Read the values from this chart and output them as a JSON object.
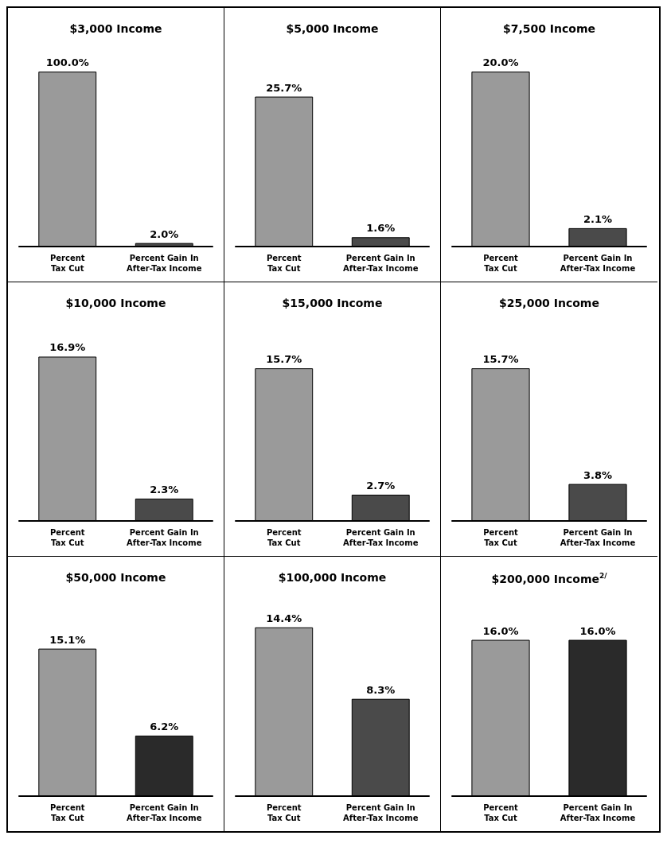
{
  "chart_data": [
    {
      "type": "bar",
      "title": "$3,000 Income",
      "categories": [
        "Percent\nTax Cut",
        "Percent Gain In\nAfter-Tax Income"
      ],
      "values": [
        100.0,
        2.0
      ],
      "value_labels": [
        "100.0%",
        "2.0%"
      ],
      "colors": [
        "#9a9a9a",
        "#4a4a4a"
      ]
    },
    {
      "type": "bar",
      "title": "$5,000 Income",
      "categories": [
        "Percent\nTax Cut",
        "Percent Gain In\nAfter-Tax Income"
      ],
      "values": [
        25.7,
        1.6
      ],
      "value_labels": [
        "25.7%",
        "1.6%"
      ],
      "colors": [
        "#9a9a9a",
        "#4a4a4a"
      ]
    },
    {
      "type": "bar",
      "title": "$7,500 Income",
      "categories": [
        "Percent\nTax Cut",
        "Percent Gain In\nAfter-Tax Income"
      ],
      "values": [
        20.0,
        2.1
      ],
      "value_labels": [
        "20.0%",
        "2.1%"
      ],
      "colors": [
        "#9a9a9a",
        "#4a4a4a"
      ]
    },
    {
      "type": "bar",
      "title": "$10,000 Income",
      "categories": [
        "Percent\nTax Cut",
        "Percent Gain In\nAfter-Tax Income"
      ],
      "values": [
        16.9,
        2.3
      ],
      "value_labels": [
        "16.9%",
        "2.3%"
      ],
      "colors": [
        "#9a9a9a",
        "#4a4a4a"
      ]
    },
    {
      "type": "bar",
      "title": "$15,000 Income",
      "categories": [
        "Percent\nTax Cut",
        "Percent Gain In\nAfter-Tax Income"
      ],
      "values": [
        15.7,
        2.7
      ],
      "value_labels": [
        "15.7%",
        "2.7%"
      ],
      "colors": [
        "#9a9a9a",
        "#4a4a4a"
      ]
    },
    {
      "type": "bar",
      "title": "$25,000 Income",
      "categories": [
        "Percent\nTax Cut",
        "Percent Gain In\nAfter-Tax Income"
      ],
      "values": [
        15.7,
        3.8
      ],
      "value_labels": [
        "15.7%",
        "3.8%"
      ],
      "colors": [
        "#9a9a9a",
        "#4a4a4a"
      ]
    },
    {
      "type": "bar",
      "title": "$50,000 Income",
      "categories": [
        "Percent\nTax Cut",
        "Percent Gain In\nAfter-Tax Income"
      ],
      "values": [
        15.1,
        6.2
      ],
      "value_labels": [
        "15.1%",
        "6.2%"
      ],
      "colors": [
        "#9a9a9a",
        "#2a2a2a"
      ]
    },
    {
      "type": "bar",
      "title": "$100,000 Income",
      "categories": [
        "Percent\nTax Cut",
        "Percent Gain In\nAfter-Tax Income"
      ],
      "values": [
        14.4,
        8.3
      ],
      "value_labels": [
        "14.4%",
        "8.3%"
      ],
      "colors": [
        "#9a9a9a",
        "#4a4a4a"
      ]
    },
    {
      "type": "bar",
      "title": "$200,000 Income$^{2/}$",
      "categories": [
        "Percent\nTax Cut",
        "Percent Gain In\nAfter-Tax Income"
      ],
      "values": [
        16.0,
        16.0
      ],
      "value_labels": [
        "16.0%",
        "16.0%"
      ],
      "colors": [
        "#9a9a9a",
        "#2a2a2a"
      ]
    }
  ]
}
